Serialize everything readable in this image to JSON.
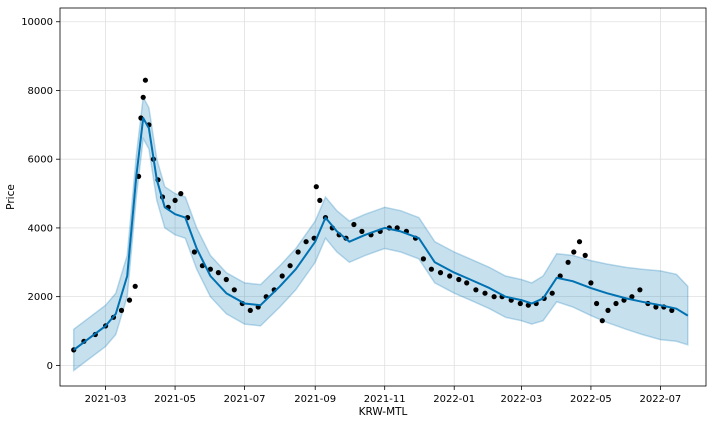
{
  "chart_data": {
    "type": "line",
    "xlabel": "KRW-MTL",
    "ylabel": "Price",
    "ylim": [
      -600,
      10400
    ],
    "yticks": [
      0,
      2000,
      4000,
      6000,
      8000,
      10000
    ],
    "xticks": [
      "2021-03",
      "2021-05",
      "2021-07",
      "2021-09",
      "2021-11",
      "2022-01",
      "2022-03",
      "2022-05",
      "2022-07"
    ],
    "x_range": [
      "2021-01-20",
      "2022-08-10"
    ],
    "grid": true,
    "legend": "none",
    "colors": {
      "forecast_line": "#0072B2",
      "uncertainty_band": "#0072B2",
      "observed_points": "#000000",
      "grid": "#e0e0e0"
    },
    "series": [
      {
        "kind": "forecast",
        "x": [
          "2021-02-01",
          "2021-02-15",
          "2021-03-01",
          "2021-03-10",
          "2021-03-20",
          "2021-03-28",
          "2021-04-03",
          "2021-04-08",
          "2021-04-15",
          "2021-04-22",
          "2021-05-01",
          "2021-05-10",
          "2021-05-20",
          "2021-06-01",
          "2021-06-15",
          "2021-07-01",
          "2021-07-15",
          "2021-08-01",
          "2021-08-15",
          "2021-09-01",
          "2021-09-10",
          "2021-09-20",
          "2021-10-01",
          "2021-10-15",
          "2021-11-01",
          "2021-11-15",
          "2021-12-01",
          "2021-12-15",
          "2022-01-01",
          "2022-01-15",
          "2022-02-01",
          "2022-02-15",
          "2022-03-01",
          "2022-03-10",
          "2022-03-20",
          "2022-04-01",
          "2022-04-15",
          "2022-05-01",
          "2022-05-15",
          "2022-06-01",
          "2022-06-15",
          "2022-07-01",
          "2022-07-15",
          "2022-07-25"
        ],
        "values": [
          450,
          800,
          1150,
          1500,
          2600,
          5500,
          7200,
          6900,
          5400,
          4600,
          4400,
          4300,
          3400,
          2600,
          2100,
          1800,
          1750,
          2300,
          2800,
          3600,
          4300,
          3900,
          3600,
          3800,
          4000,
          3900,
          3700,
          3000,
          2700,
          2500,
          2250,
          2000,
          1900,
          1800,
          1950,
          2550,
          2450,
          2250,
          2100,
          1950,
          1850,
          1750,
          1650,
          1450
        ]
      },
      {
        "kind": "uncertainty",
        "x": [
          "2021-02-01",
          "2021-02-15",
          "2021-03-01",
          "2021-03-10",
          "2021-03-20",
          "2021-03-28",
          "2021-04-03",
          "2021-04-08",
          "2021-04-15",
          "2021-04-22",
          "2021-05-01",
          "2021-05-10",
          "2021-05-20",
          "2021-06-01",
          "2021-06-15",
          "2021-07-01",
          "2021-07-15",
          "2021-08-01",
          "2021-08-15",
          "2021-09-01",
          "2021-09-10",
          "2021-09-20",
          "2021-10-01",
          "2021-10-15",
          "2021-11-01",
          "2021-11-15",
          "2021-12-01",
          "2021-12-15",
          "2022-01-01",
          "2022-01-15",
          "2022-02-01",
          "2022-02-15",
          "2022-03-01",
          "2022-03-10",
          "2022-03-20",
          "2022-04-01",
          "2022-04-15",
          "2022-05-01",
          "2022-05-15",
          "2022-06-01",
          "2022-06-15",
          "2022-07-01",
          "2022-07-15",
          "2022-07-25"
        ],
        "lower": [
          -150,
          200,
          550,
          900,
          2000,
          4900,
          6600,
          6300,
          4800,
          4000,
          3800,
          3700,
          2800,
          2000,
          1500,
          1200,
          1150,
          1700,
          2200,
          3000,
          3700,
          3300,
          3000,
          3200,
          3400,
          3300,
          3100,
          2400,
          2100,
          1900,
          1650,
          1400,
          1300,
          1200,
          1300,
          1850,
          1700,
          1450,
          1250,
          1050,
          900,
          750,
          700,
          600
        ],
        "upper": [
          1050,
          1400,
          1750,
          2100,
          3200,
          6100,
          7800,
          7500,
          6000,
          5200,
          5000,
          4900,
          4000,
          3200,
          2700,
          2400,
          2350,
          2900,
          3400,
          4200,
          4900,
          4500,
          4200,
          4400,
          4600,
          4500,
          4300,
          3600,
          3300,
          3100,
          2850,
          2600,
          2500,
          2400,
          2600,
          3250,
          3200,
          3050,
          2950,
          2850,
          2800,
          2750,
          2650,
          2300
        ]
      },
      {
        "kind": "observed",
        "x": [
          "2021-02-01",
          "2021-02-10",
          "2021-02-20",
          "2021-03-01",
          "2021-03-08",
          "2021-03-15",
          "2021-03-22",
          "2021-03-27",
          "2021-03-30",
          "2021-04-01",
          "2021-04-03",
          "2021-04-05",
          "2021-04-08",
          "2021-04-12",
          "2021-04-16",
          "2021-04-20",
          "2021-04-25",
          "2021-05-01",
          "2021-05-06",
          "2021-05-12",
          "2021-05-18",
          "2021-05-25",
          "2021-06-01",
          "2021-06-08",
          "2021-06-15",
          "2021-06-22",
          "2021-06-29",
          "2021-07-06",
          "2021-07-13",
          "2021-07-20",
          "2021-07-27",
          "2021-08-03",
          "2021-08-10",
          "2021-08-17",
          "2021-08-24",
          "2021-08-31",
          "2021-09-02",
          "2021-09-05",
          "2021-09-10",
          "2021-09-16",
          "2021-09-22",
          "2021-09-28",
          "2021-10-05",
          "2021-10-12",
          "2021-10-20",
          "2021-10-28",
          "2021-11-05",
          "2021-11-12",
          "2021-11-20",
          "2021-11-28",
          "2021-12-05",
          "2021-12-12",
          "2021-12-20",
          "2021-12-28",
          "2022-01-05",
          "2022-01-12",
          "2022-01-20",
          "2022-01-28",
          "2022-02-05",
          "2022-02-12",
          "2022-02-20",
          "2022-02-28",
          "2022-03-07",
          "2022-03-14",
          "2022-03-21",
          "2022-03-28",
          "2022-04-04",
          "2022-04-11",
          "2022-04-16",
          "2022-04-21",
          "2022-04-26",
          "2022-05-01",
          "2022-05-06",
          "2022-05-11",
          "2022-05-16",
          "2022-05-23",
          "2022-05-30",
          "2022-06-06",
          "2022-06-13",
          "2022-06-20",
          "2022-06-27",
          "2022-07-04",
          "2022-07-11"
        ],
        "values": [
          450,
          700,
          900,
          1150,
          1400,
          1600,
          1900,
          2300,
          5500,
          7200,
          7800,
          8300,
          7000,
          6000,
          5400,
          4900,
          4600,
          4800,
          5000,
          4300,
          3300,
          2900,
          2800,
          2700,
          2500,
          2200,
          1800,
          1600,
          1700,
          2000,
          2200,
          2600,
          2900,
          3300,
          3600,
          3700,
          5200,
          4800,
          4300,
          4000,
          3800,
          3700,
          4100,
          3900,
          3800,
          3900,
          4000,
          4000,
          3900,
          3700,
          3100,
          2800,
          2700,
          2600,
          2500,
          2400,
          2200,
          2100,
          2000,
          2000,
          1900,
          1800,
          1750,
          1800,
          1950,
          2100,
          2600,
          3000,
          3300,
          3600,
          3200,
          2400,
          1800,
          1300,
          1600,
          1800,
          1900,
          2000,
          2200,
          1800,
          1700,
          1700,
          1600
        ]
      }
    ]
  }
}
